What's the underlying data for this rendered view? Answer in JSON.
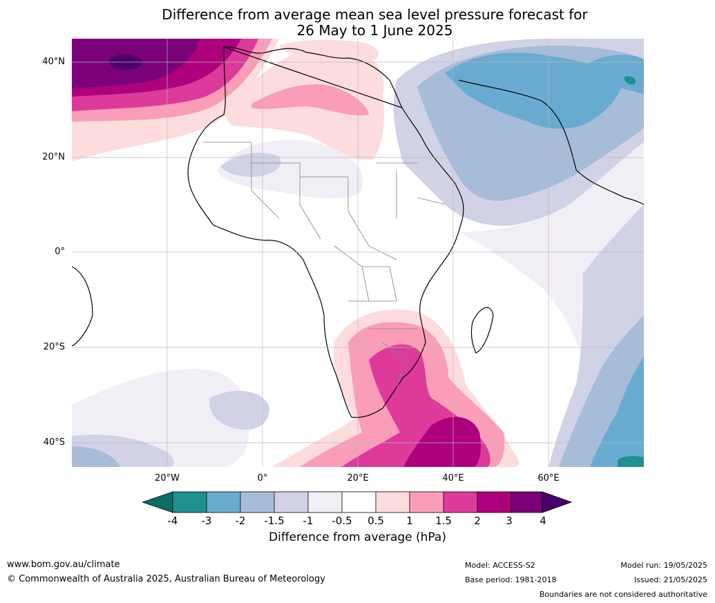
{
  "title": {
    "line1": "Difference from average mean sea level pressure forecast for",
    "line2": "26 May to 1 June 2025"
  },
  "map": {
    "latitude_labels": [
      "40°N",
      "20°N",
      "0°",
      "20°S",
      "40°S"
    ],
    "longitude_labels": [
      "20°W",
      "0°",
      "20°E",
      "40°E",
      "60°E"
    ],
    "region": "Africa, Europe and Middle East"
  },
  "colorbar": {
    "title": "Difference from average (hPa)",
    "tick_labels": [
      "-4",
      "-3",
      "-2",
      "-1.5",
      "-1",
      "-0.5",
      "0.5",
      "1",
      "1.5",
      "2",
      "3",
      "4"
    ],
    "colors": {
      "below_min": "#0c6f62",
      "neg4_neg3": "#1f9090",
      "neg3_neg2": "#69aad0",
      "neg2_neg15": "#a7bcd9",
      "neg15_neg1": "#d1d2e6",
      "neg1_neg05": "#f2eef6",
      "neutral": "#ffffff",
      "pos05_1": "#fddcdd",
      "pos1_15": "#f99db8",
      "pos15_2": "#dd3a9c",
      "pos2_3": "#ae017e",
      "pos3_4": "#7a0177",
      "above_max": "#49006a"
    }
  },
  "footer": {
    "website": "www.bom.gov.au/climate",
    "copyright": "© Commonwealth of Australia 2025, Australian Bureau of Meteorology",
    "model": "Model: ACCESS-S2",
    "base_period": "Base period: 1981-2018",
    "model_run": "Model run: 19/05/2025",
    "issued": "Issued: 21/05/2025",
    "disclaimer": "Boundaries are not considered authoritative"
  }
}
